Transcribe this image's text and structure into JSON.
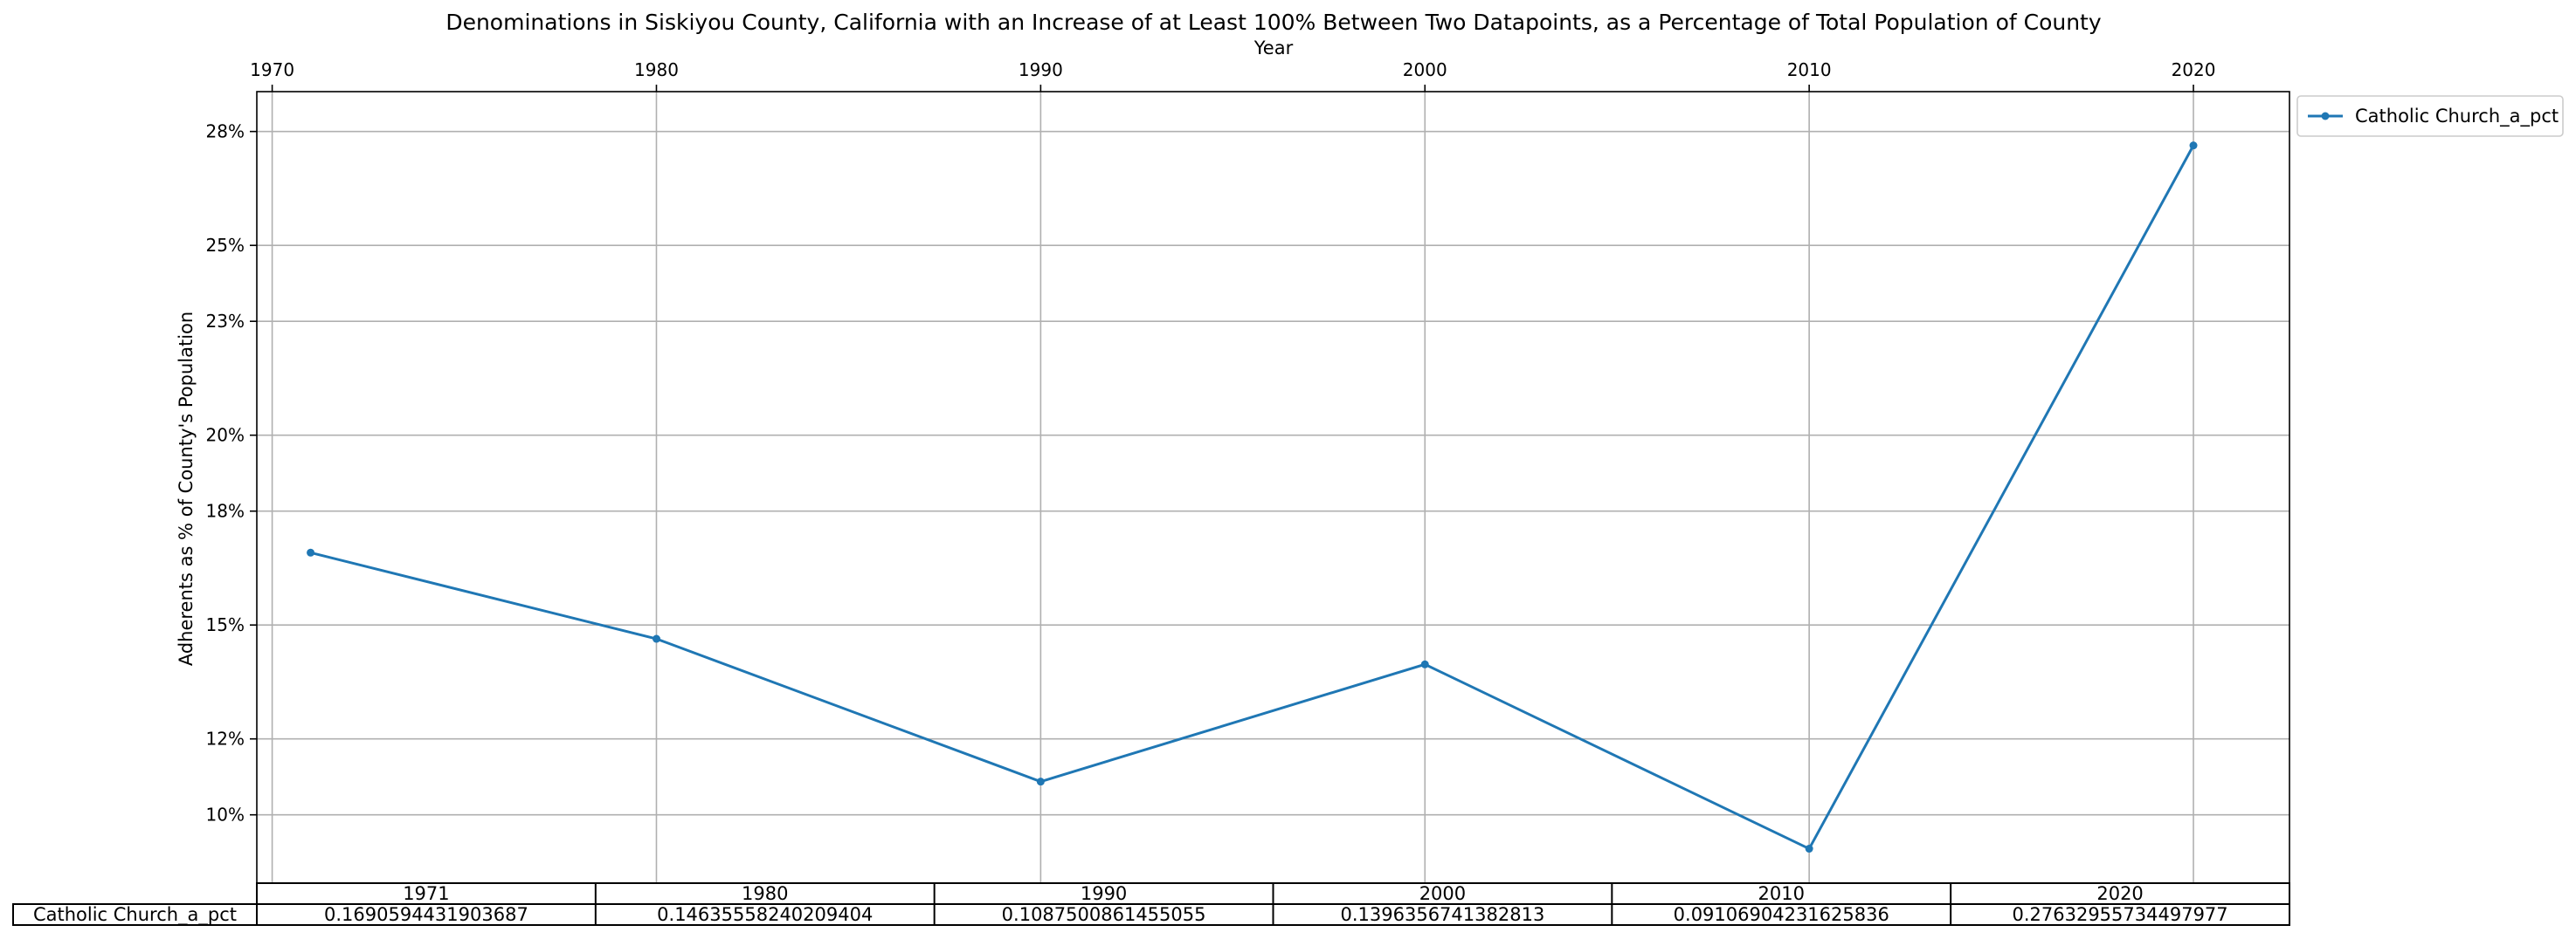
{
  "chart_data": {
    "type": "line",
    "title": "Denominations in Siskiyou County, California with an Increase of at Least 100% Between Two Datapoints, as a Percentage of Total Population of County",
    "xlabel": "Year",
    "ylabel": "Adherents as % of County's Population",
    "x_ticks": [
      "1970",
      "1980",
      "1990",
      "2000",
      "2010",
      "2020"
    ],
    "y_ticks": [
      "10%",
      "12%",
      "15%",
      "18%",
      "20%",
      "23%",
      "25%",
      "28%"
    ],
    "x": [
      1971,
      1980,
      1990,
      2000,
      2010,
      2020
    ],
    "series": [
      {
        "name": "Catholic Church_a_pct",
        "values": [
          0.1690594431903687,
          0.14635558240209404,
          0.1087500861455055,
          0.1396356741382813,
          0.09106904231625836,
          0.27632955734497977
        ],
        "color": "#1f77b4"
      }
    ],
    "xlim": [
      1969.6,
      2022.5
    ],
    "ylim": [
      0.082,
      0.2905
    ],
    "grid": true,
    "legend_position": "outside-upper-right",
    "x_axis_position": "top",
    "table": {
      "columns": [
        "1971",
        "1980",
        "1990",
        "2000",
        "2010",
        "2020"
      ],
      "row_label": "Catholic Church_a_pct",
      "cells": [
        "0.1690594431903687",
        "0.14635558240209404",
        "0.1087500861455055",
        "0.1396356741382813",
        "0.09106904231625836",
        "0.27632955734497977"
      ]
    }
  }
}
